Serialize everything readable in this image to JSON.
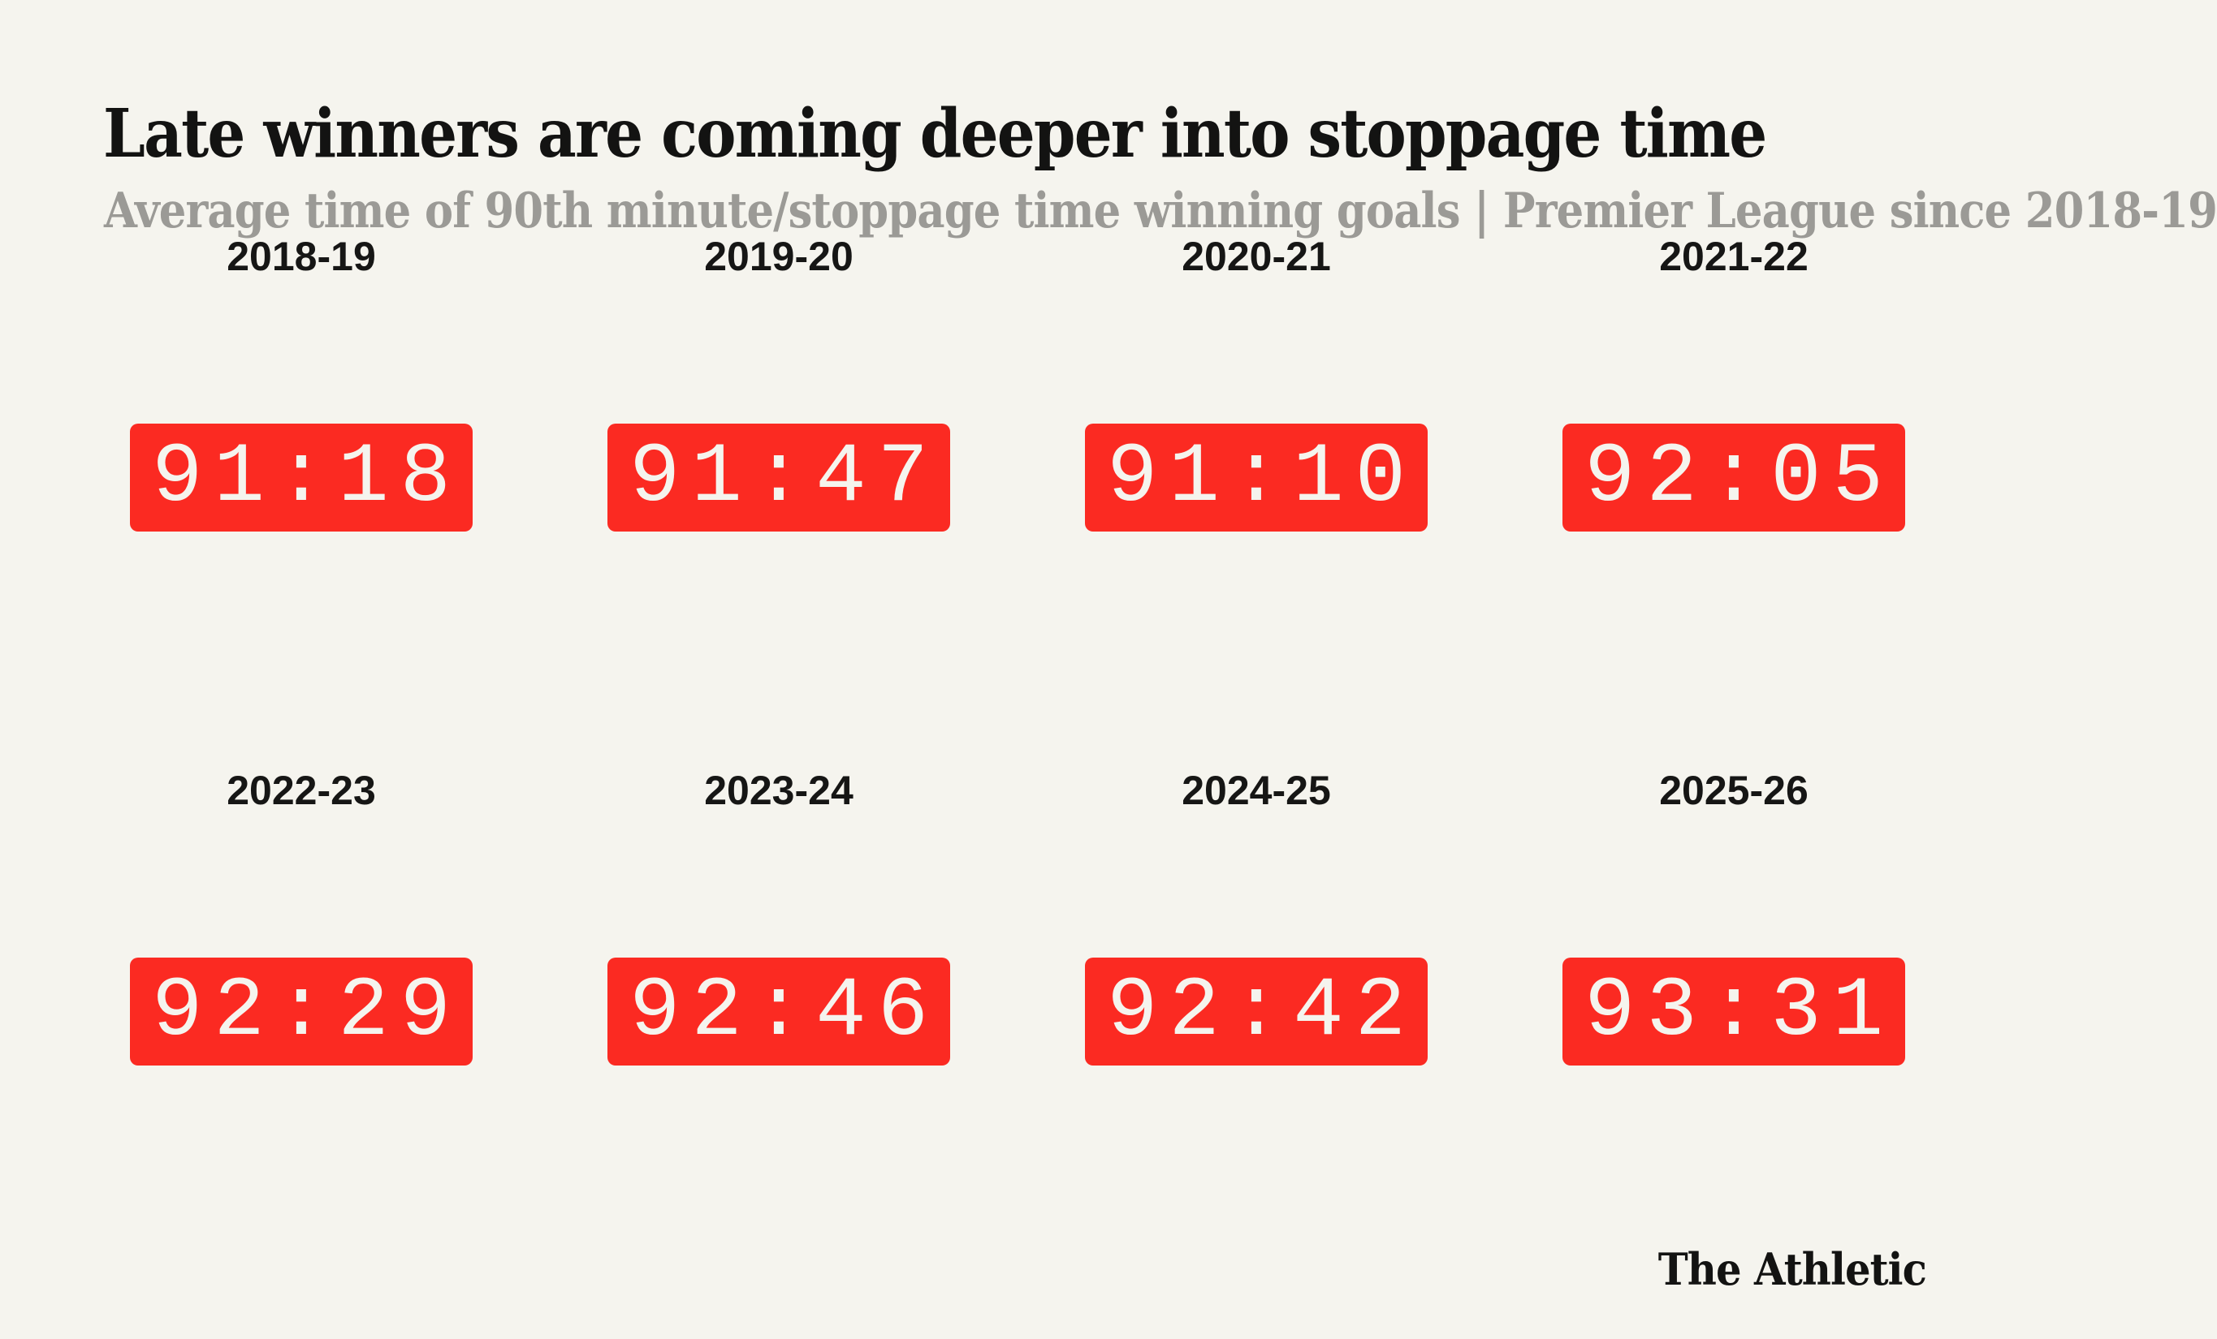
{
  "page": {
    "title": "Late winners are coming deeper into stoppage time",
    "subtitle": "Average time of 90th minute/stoppage time winning goals | Premier League since 2018-19",
    "brand": "The Athletic",
    "colors": {
      "background": "#f5f4ee",
      "accent_red": "#fb2a22",
      "title_text": "#131312",
      "subtitle_text": "#9b9a96",
      "time_text": "#f5f4ee"
    }
  },
  "cells": [
    {
      "season": "2018-19",
      "time": "91:18"
    },
    {
      "season": "2019-20",
      "time": "91:47"
    },
    {
      "season": "2020-21",
      "time": "91:10"
    },
    {
      "season": "2021-22",
      "time": "92:05"
    },
    {
      "season": "2022-23",
      "time": "92:29"
    },
    {
      "season": "2023-24",
      "time": "92:46"
    },
    {
      "season": "2024-25",
      "time": "92:42"
    },
    {
      "season": "2025-26",
      "time": "93:31"
    }
  ],
  "chart_data": {
    "type": "table",
    "title": "Late winners are coming deeper into stoppage time",
    "subtitle": "Average time of 90th minute/stoppage time winning goals | Premier League since 2018-19",
    "unit": "match minute (mm:ss)",
    "categories": [
      "2018-19",
      "2019-20",
      "2020-21",
      "2021-22",
      "2022-23",
      "2023-24",
      "2024-25",
      "2025-26"
    ],
    "values": [
      "91:18",
      "91:47",
      "91:10",
      "92:05",
      "92:29",
      "92:46",
      "92:42",
      "93:31"
    ],
    "values_in_seconds": [
      5478,
      5507,
      5470,
      5525,
      5549,
      5566,
      5562,
      5611
    ],
    "layout": "2 rows x 4 columns of red stopwatch-style value boxes",
    "legend": "none",
    "grid": "off",
    "attribution": "The Athletic"
  }
}
